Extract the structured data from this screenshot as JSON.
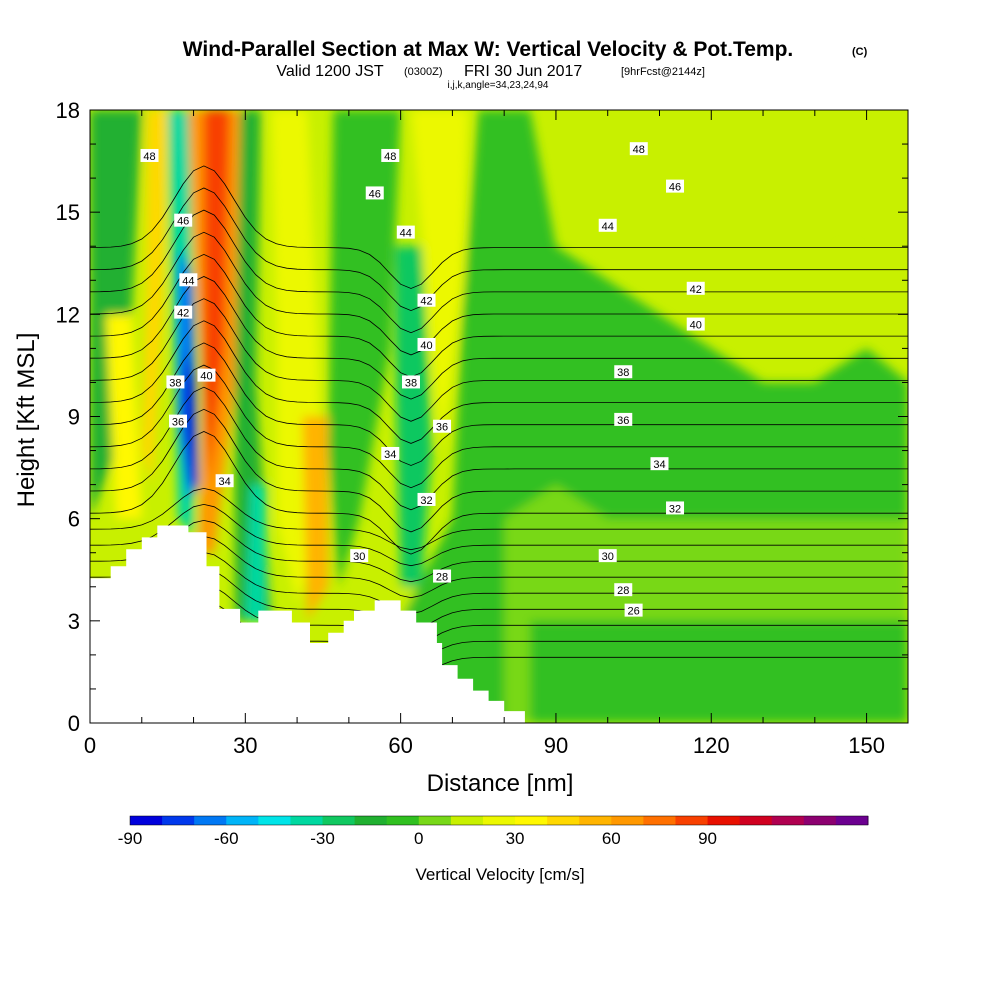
{
  "title": "Wind-Parallel Section at Max W: Vertical Velocity & Pot.Temp.",
  "copyright": "(C)",
  "subtitle_valid": "Valid 1200 JST",
  "subtitle_utc": "(0300Z)",
  "subtitle_date": "FRI 30 Jun 2017",
  "subtitle_fcst": "[9hrFcst@2144z]",
  "indices": "i,j,k,angle=34,23,24,94",
  "chart_data": {
    "type": "heatmap",
    "xlabel": "Distance [nm]",
    "ylabel": "Height [Kft MSL]",
    "xlim": [
      0,
      158
    ],
    "ylim": [
      0,
      18
    ],
    "xticks": [
      "0",
      "30",
      "60",
      "90",
      "120",
      "150"
    ],
    "yticks": [
      "0",
      "3",
      "6",
      "9",
      "12",
      "15",
      "18"
    ],
    "xtick_values": [
      0,
      30,
      60,
      90,
      120,
      150
    ],
    "ytick_values": [
      0,
      3,
      6,
      9,
      12,
      15,
      18
    ],
    "colorbar": {
      "label": "Vertical Velocity [cm/s]",
      "min": -90,
      "step": 10,
      "colors": [
        "#0000dc",
        "#0038ec",
        "#0078f4",
        "#00b4f8",
        "#00e4e8",
        "#00d8a0",
        "#10c860",
        "#20b030",
        "#30c020",
        "#78d818",
        "#c8f000",
        "#ecf800",
        "#fff800",
        "#ffd800",
        "#ffb400",
        "#ff9800",
        "#ff7000",
        "#f84000",
        "#e81000",
        "#d00020",
        "#b00050",
        "#8c0070",
        "#6c0090"
      ],
      "tick_labels": [
        "-90",
        "-60",
        "-30",
        "0",
        "30",
        "60",
        "90"
      ],
      "tick_values": [
        -90,
        -60,
        -30,
        0,
        30,
        60,
        90
      ]
    },
    "terrain": [
      [
        0,
        4.25
      ],
      [
        4,
        4.25
      ],
      [
        4,
        4.6
      ],
      [
        7,
        4.6
      ],
      [
        7,
        5.1
      ],
      [
        10,
        5.1
      ],
      [
        10,
        5.45
      ],
      [
        13,
        5.45
      ],
      [
        13,
        5.8
      ],
      [
        19,
        5.8
      ],
      [
        19,
        5.6
      ],
      [
        22.5,
        5.6
      ],
      [
        22.5,
        4.6
      ],
      [
        25,
        4.6
      ],
      [
        25,
        3.35
      ],
      [
        29,
        3.35
      ],
      [
        29,
        2.95
      ],
      [
        32.5,
        2.95
      ],
      [
        32.5,
        3.3
      ],
      [
        39,
        3.3
      ],
      [
        39,
        2.95
      ],
      [
        42.5,
        2.95
      ],
      [
        42.5,
        2.35
      ],
      [
        46,
        2.35
      ],
      [
        46,
        2.65
      ],
      [
        49,
        2.65
      ],
      [
        49,
        3.0
      ],
      [
        51,
        3.0
      ],
      [
        51,
        3.3
      ],
      [
        55,
        3.3
      ],
      [
        55,
        3.6
      ],
      [
        60,
        3.6
      ],
      [
        60,
        3.3
      ],
      [
        63,
        3.3
      ],
      [
        63,
        2.95
      ],
      [
        67,
        2.95
      ],
      [
        67,
        2.35
      ],
      [
        68,
        2.35
      ],
      [
        68,
        1.7
      ],
      [
        71,
        1.7
      ],
      [
        71,
        1.3
      ],
      [
        74,
        1.3
      ],
      [
        74,
        0.95
      ],
      [
        77,
        0.95
      ],
      [
        77,
        0.65
      ],
      [
        80,
        0.65
      ],
      [
        80,
        0.35
      ],
      [
        84,
        0.35
      ],
      [
        84,
        0
      ],
      [
        0,
        0
      ]
    ],
    "velocity_features": [
      {
        "x": 19,
        "y": 9,
        "w_cm_s": -85
      },
      {
        "x": 25,
        "y": 13,
        "w_cm_s": 90
      },
      {
        "x": 14,
        "y": 13,
        "w_cm_s": 40
      },
      {
        "x": 7,
        "y": 9,
        "w_cm_s": 30
      },
      {
        "x": 40,
        "y": 14,
        "w_cm_s": 25
      },
      {
        "x": 32,
        "y": 6,
        "w_cm_s": -30
      },
      {
        "x": 44,
        "y": 8,
        "w_cm_s": 50
      },
      {
        "x": 62,
        "y": 11,
        "w_cm_s": -30
      },
      {
        "x": 70,
        "y": 12,
        "w_cm_s": 20
      },
      {
        "x": 100,
        "y": 5,
        "w_cm_s": -10
      }
    ],
    "theta_contours": [
      26,
      28,
      30,
      32,
      34,
      36,
      38,
      40,
      42,
      44,
      46,
      48
    ],
    "theta_labels": [
      {
        "text": "48",
        "x": 11.5,
        "y": 16.65
      },
      {
        "text": "48",
        "x": 58,
        "y": 16.65
      },
      {
        "text": "48",
        "x": 106,
        "y": 16.85
      },
      {
        "text": "46",
        "x": 18,
        "y": 14.75
      },
      {
        "text": "46",
        "x": 55,
        "y": 15.55
      },
      {
        "text": "46",
        "x": 113,
        "y": 15.75
      },
      {
        "text": "44",
        "x": 19,
        "y": 13.0
      },
      {
        "text": "44",
        "x": 61,
        "y": 14.4
      },
      {
        "text": "44",
        "x": 100,
        "y": 14.6
      },
      {
        "text": "42",
        "x": 18,
        "y": 12.05
      },
      {
        "text": "42",
        "x": 65,
        "y": 12.4
      },
      {
        "text": "42",
        "x": 117,
        "y": 12.75
      },
      {
        "text": "40",
        "x": 22.5,
        "y": 10.2
      },
      {
        "text": "40",
        "x": 65,
        "y": 11.1
      },
      {
        "text": "40",
        "x": 117,
        "y": 11.7
      },
      {
        "text": "38",
        "x": 16.5,
        "y": 10.0
      },
      {
        "text": "38",
        "x": 62,
        "y": 10.0
      },
      {
        "text": "38",
        "x": 103,
        "y": 10.3
      },
      {
        "text": "36",
        "x": 17,
        "y": 8.85
      },
      {
        "text": "36",
        "x": 68,
        "y": 8.7
      },
      {
        "text": "36",
        "x": 103,
        "y": 8.9
      },
      {
        "text": "34",
        "x": 26,
        "y": 7.1
      },
      {
        "text": "34",
        "x": 58,
        "y": 7.9
      },
      {
        "text": "34",
        "x": 110,
        "y": 7.6
      },
      {
        "text": "32",
        "x": 65,
        "y": 6.55
      },
      {
        "text": "32",
        "x": 113,
        "y": 6.3
      },
      {
        "text": "30",
        "x": 52,
        "y": 4.9
      },
      {
        "text": "30",
        "x": 100,
        "y": 4.9
      },
      {
        "text": "28",
        "x": 68,
        "y": 4.3
      },
      {
        "text": "28",
        "x": 103,
        "y": 3.9
      },
      {
        "text": "26",
        "x": 105,
        "y": 3.3
      }
    ]
  }
}
